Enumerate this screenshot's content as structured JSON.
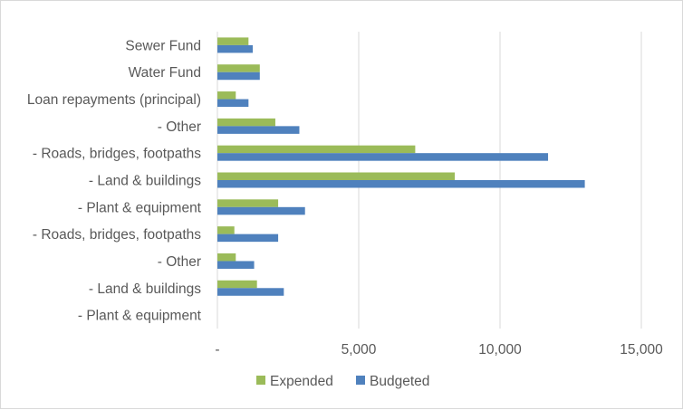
{
  "chart_data": {
    "type": "bar",
    "orientation": "horizontal",
    "categories": [
      "Sewer Fund",
      "Water Fund",
      "Loan repayments (principal)",
      "- Other",
      "- Roads, bridges, footpaths",
      "- Land & buildings",
      "- Plant & equipment",
      "- Roads, bridges, footpaths",
      "- Other",
      "- Land & buildings",
      "- Plant & equipment"
    ],
    "series": [
      {
        "name": "Expended",
        "color": "#9bbb59",
        "values": [
          1100,
          1500,
          650,
          2050,
          7000,
          8400,
          2150,
          600,
          650,
          1400,
          0
        ]
      },
      {
        "name": "Budgeted",
        "color": "#4f81bd",
        "values": [
          1250,
          1500,
          1100,
          2900,
          11700,
          13000,
          3100,
          2150,
          1300,
          2350,
          0
        ]
      }
    ],
    "xlim": [
      0,
      15000
    ],
    "xticks": [
      0,
      5000,
      10000,
      15000
    ],
    "xtick_labels": [
      "-",
      "5,000",
      "10,000",
      "15,000"
    ],
    "gridlines": true,
    "legend_position": "bottom",
    "title": "",
    "xlabel": "",
    "ylabel": ""
  }
}
